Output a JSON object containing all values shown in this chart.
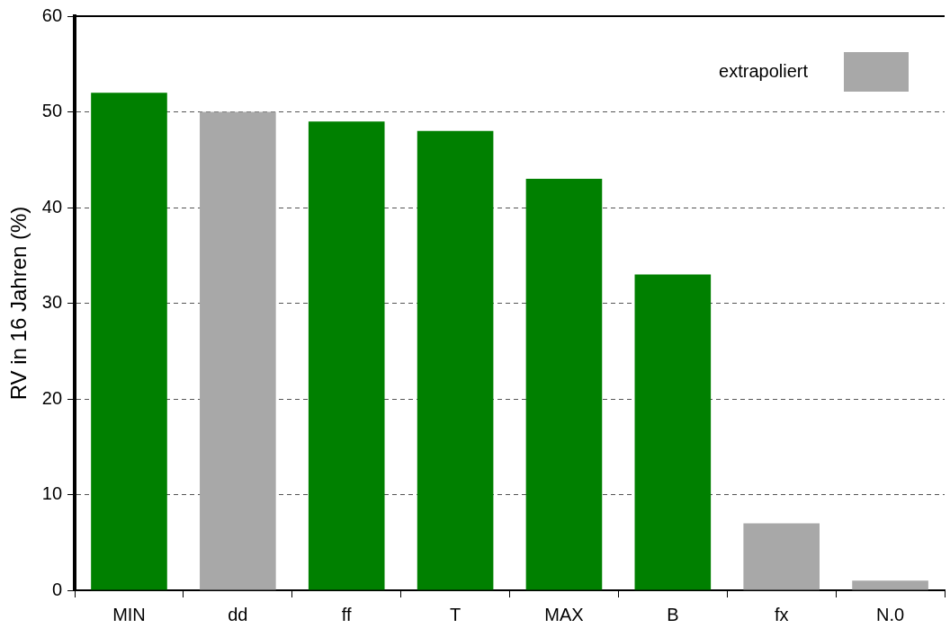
{
  "chart_data": {
    "type": "bar",
    "ylabel": "RV in 16 Jahren (%)",
    "categories": [
      "MIN",
      "dd",
      "ff",
      "T",
      "MAX",
      "B",
      "fx",
      "N.0"
    ],
    "series": [
      {
        "color": "#008000",
        "values": [
          52,
          null,
          49,
          48,
          43,
          33,
          null,
          null
        ]
      },
      {
        "name": "extrapoliert",
        "color": "#a8a8a8",
        "values": [
          null,
          50,
          null,
          null,
          null,
          null,
          7,
          1
        ]
      }
    ],
    "ylim": [
      0,
      60
    ],
    "yticks": [
      0,
      10,
      20,
      30,
      40,
      50,
      60
    ],
    "grid": "y",
    "legend": "top right"
  }
}
